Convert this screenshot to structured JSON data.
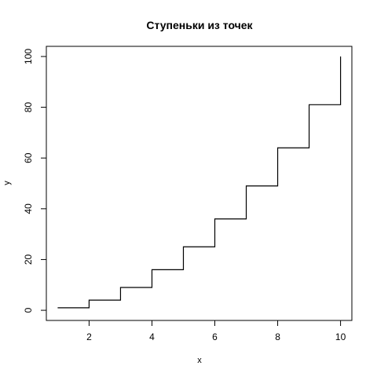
{
  "chart_data": {
    "type": "line",
    "title": "Ступеньки из точек",
    "xlabel": "x",
    "ylabel": "y",
    "xlim": [
      0.64,
      10.36
    ],
    "ylim": [
      -4,
      104
    ],
    "xticks": [
      2,
      4,
      6,
      8,
      10
    ],
    "yticks": [
      0,
      20,
      40,
      60,
      80,
      100
    ],
    "step": "post",
    "series": [
      {
        "x": [
          1,
          2,
          3,
          4,
          5,
          6,
          7,
          8,
          9,
          10
        ],
        "y": [
          1,
          4,
          9,
          16,
          25,
          36,
          49,
          64,
          81,
          100
        ]
      }
    ],
    "line_color": "#000000",
    "grid": false
  }
}
